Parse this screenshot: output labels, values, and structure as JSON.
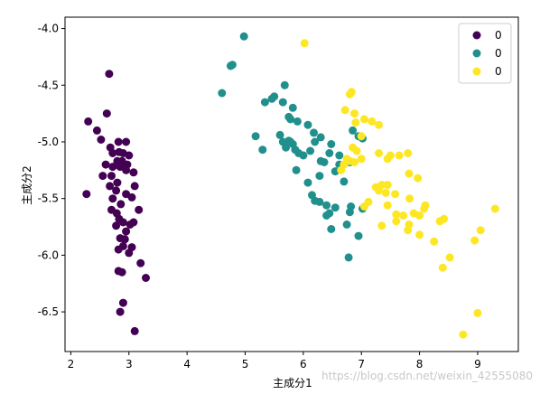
{
  "chart_data": {
    "type": "scatter",
    "xlabel": "主成分1",
    "ylabel": "主成分2",
    "xlim": [
      1.9,
      9.7
    ],
    "ylim": [
      -6.85,
      -3.9
    ],
    "xticks": [
      2,
      3,
      4,
      5,
      6,
      7,
      8,
      9
    ],
    "yticks": [
      -4.0,
      -4.5,
      -5.0,
      -5.5,
      -6.0,
      -6.5
    ],
    "xtick_labels": [
      "2",
      "3",
      "4",
      "5",
      "6",
      "7",
      "8",
      "9"
    ],
    "ytick_labels": [
      "-4.0",
      "-4.5",
      "-5.0",
      "-5.5",
      "-6.0",
      "-6.5"
    ],
    "grid": false,
    "legend_position": "top-right",
    "series": [
      {
        "name": "0",
        "color": "#440154",
        "points": [
          [
            2.3,
            -4.82
          ],
          [
            2.66,
            -4.4
          ],
          [
            2.62,
            -4.75
          ],
          [
            2.45,
            -4.9
          ],
          [
            2.52,
            -4.98
          ],
          [
            2.68,
            -5.05
          ],
          [
            2.82,
            -5.0
          ],
          [
            2.95,
            -5.0
          ],
          [
            2.72,
            -5.1
          ],
          [
            2.83,
            -5.09
          ],
          [
            2.9,
            -5.1
          ],
          [
            3.0,
            -5.12
          ],
          [
            2.8,
            -5.17
          ],
          [
            2.88,
            -5.17
          ],
          [
            2.97,
            -5.2
          ],
          [
            2.6,
            -5.2
          ],
          [
            2.72,
            -5.22
          ],
          [
            2.85,
            -5.22
          ],
          [
            2.95,
            -5.25
          ],
          [
            3.08,
            -5.27
          ],
          [
            2.7,
            -5.3
          ],
          [
            2.8,
            -5.36
          ],
          [
            2.55,
            -5.3
          ],
          [
            3.1,
            -5.39
          ],
          [
            2.67,
            -5.39
          ],
          [
            2.78,
            -5.43
          ],
          [
            2.95,
            -5.46
          ],
          [
            3.05,
            -5.49
          ],
          [
            2.27,
            -5.46
          ],
          [
            2.72,
            -5.5
          ],
          [
            2.86,
            -5.55
          ],
          [
            3.17,
            -5.6
          ],
          [
            2.7,
            -5.6
          ],
          [
            2.79,
            -5.63
          ],
          [
            2.83,
            -5.68
          ],
          [
            2.9,
            -5.71
          ],
          [
            3.02,
            -5.73
          ],
          [
            3.08,
            -5.71
          ],
          [
            2.78,
            -5.74
          ],
          [
            2.95,
            -5.79
          ],
          [
            2.85,
            -5.85
          ],
          [
            2.93,
            -5.86
          ],
          [
            2.9,
            -5.92
          ],
          [
            3.05,
            -5.93
          ],
          [
            2.82,
            -5.95
          ],
          [
            3.0,
            -5.98
          ],
          [
            2.88,
            -6.15
          ],
          [
            3.2,
            -6.07
          ],
          [
            2.82,
            -6.14
          ],
          [
            3.29,
            -6.2
          ],
          [
            2.9,
            -6.42
          ],
          [
            2.85,
            -6.5
          ],
          [
            3.1,
            -6.67
          ]
        ]
      },
      {
        "name": "0",
        "color": "#21908d",
        "points": [
          [
            4.98,
            -4.07
          ],
          [
            4.78,
            -4.32
          ],
          [
            4.75,
            -4.33
          ],
          [
            4.6,
            -4.57
          ],
          [
            5.68,
            -4.5
          ],
          [
            5.5,
            -4.6
          ],
          [
            5.46,
            -4.62
          ],
          [
            5.34,
            -4.65
          ],
          [
            5.65,
            -4.65
          ],
          [
            5.82,
            -4.7
          ],
          [
            5.75,
            -4.78
          ],
          [
            5.78,
            -4.8
          ],
          [
            5.9,
            -4.82
          ],
          [
            6.08,
            -4.85
          ],
          [
            6.18,
            -4.92
          ],
          [
            5.18,
            -4.95
          ],
          [
            5.6,
            -4.94
          ],
          [
            6.3,
            -4.96
          ],
          [
            5.75,
            -4.99
          ],
          [
            5.65,
            -5.0
          ],
          [
            5.78,
            -5.0
          ],
          [
            5.82,
            -5.02
          ],
          [
            6.2,
            -5.0
          ],
          [
            6.48,
            -5.02
          ],
          [
            5.7,
            -5.05
          ],
          [
            6.12,
            -5.08
          ],
          [
            5.86,
            -5.07
          ],
          [
            5.3,
            -5.07
          ],
          [
            5.92,
            -5.1
          ],
          [
            6.45,
            -5.1
          ],
          [
            6.0,
            -5.12
          ],
          [
            6.62,
            -5.12
          ],
          [
            6.3,
            -5.17
          ],
          [
            6.36,
            -5.18
          ],
          [
            6.62,
            -5.2
          ],
          [
            5.88,
            -5.25
          ],
          [
            6.55,
            -5.26
          ],
          [
            6.8,
            -5.18
          ],
          [
            6.28,
            -5.3
          ],
          [
            6.08,
            -5.36
          ],
          [
            6.7,
            -5.35
          ],
          [
            6.15,
            -5.47
          ],
          [
            6.2,
            -5.52
          ],
          [
            6.28,
            -5.53
          ],
          [
            6.4,
            -5.56
          ],
          [
            6.55,
            -5.58
          ],
          [
            6.82,
            -5.57
          ],
          [
            6.8,
            -5.62
          ],
          [
            7.02,
            -5.59
          ],
          [
            6.45,
            -5.63
          ],
          [
            6.4,
            -5.65
          ],
          [
            6.75,
            -5.73
          ],
          [
            6.48,
            -5.77
          ],
          [
            6.95,
            -5.83
          ],
          [
            6.78,
            -6.02
          ],
          [
            6.95,
            -4.95
          ],
          [
            6.85,
            -4.9
          ],
          [
            7.02,
            -4.97
          ]
        ]
      },
      {
        "name": "0",
        "color": "#fde725",
        "points": [
          [
            6.02,
            -4.13
          ],
          [
            6.83,
            -4.56
          ],
          [
            6.8,
            -4.58
          ],
          [
            6.72,
            -4.72
          ],
          [
            6.88,
            -4.75
          ],
          [
            7.05,
            -4.8
          ],
          [
            7.18,
            -4.82
          ],
          [
            6.9,
            -4.83
          ],
          [
            7.3,
            -4.85
          ],
          [
            7.0,
            -4.95
          ],
          [
            6.85,
            -5.05
          ],
          [
            6.92,
            -5.08
          ],
          [
            7.3,
            -5.1
          ],
          [
            7.5,
            -5.12
          ],
          [
            7.65,
            -5.12
          ],
          [
            7.8,
            -5.1
          ],
          [
            6.75,
            -5.15
          ],
          [
            7.0,
            -5.15
          ],
          [
            6.88,
            -5.18
          ],
          [
            7.45,
            -5.15
          ],
          [
            6.7,
            -5.2
          ],
          [
            6.8,
            -5.17
          ],
          [
            6.65,
            -5.25
          ],
          [
            7.82,
            -5.28
          ],
          [
            7.97,
            -5.32
          ],
          [
            7.35,
            -5.38
          ],
          [
            7.45,
            -5.38
          ],
          [
            7.25,
            -5.4
          ],
          [
            7.3,
            -5.43
          ],
          [
            7.42,
            -5.45
          ],
          [
            7.58,
            -5.46
          ],
          [
            7.83,
            -5.5
          ],
          [
            7.12,
            -5.53
          ],
          [
            7.45,
            -5.56
          ],
          [
            7.05,
            -5.57
          ],
          [
            8.1,
            -5.56
          ],
          [
            8.08,
            -5.59
          ],
          [
            7.6,
            -5.64
          ],
          [
            7.72,
            -5.65
          ],
          [
            7.9,
            -5.63
          ],
          [
            8.0,
            -5.65
          ],
          [
            7.6,
            -5.7
          ],
          [
            8.35,
            -5.7
          ],
          [
            8.42,
            -5.68
          ],
          [
            7.82,
            -5.73
          ],
          [
            7.35,
            -5.74
          ],
          [
            7.8,
            -5.78
          ],
          [
            8.0,
            -5.82
          ],
          [
            8.25,
            -5.88
          ],
          [
            8.95,
            -5.87
          ],
          [
            9.05,
            -5.78
          ],
          [
            9.3,
            -5.59
          ],
          [
            8.52,
            -6.02
          ],
          [
            8.4,
            -6.11
          ],
          [
            9.0,
            -6.51
          ],
          [
            8.75,
            -6.7
          ]
        ]
      }
    ]
  },
  "watermark": "https://blog.csdn.net/weixin_42555080"
}
